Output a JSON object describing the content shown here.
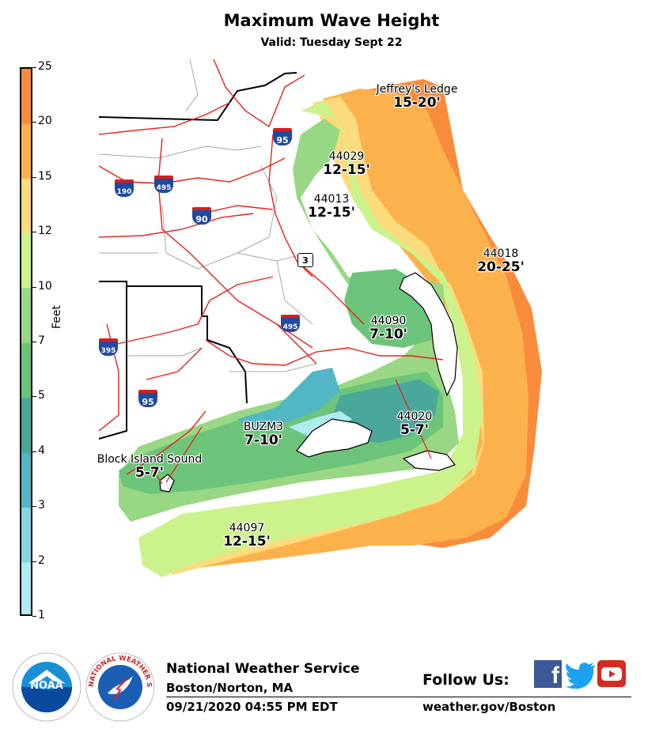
{
  "header": {
    "title": "Maximum Wave Height",
    "subtitle": "Valid: Tuesday Sept 22"
  },
  "legend": {
    "unit_label": "Feet",
    "ticks": [
      "1",
      "2",
      "3",
      "4",
      "5",
      "7",
      "10",
      "12",
      "15",
      "20",
      "25"
    ],
    "colors": [
      "#aeecf2",
      "#86d8e0",
      "#52b7c4",
      "#4aa89b",
      "#6cc47a",
      "#98d784",
      "#ccf28c",
      "#fbdb7c",
      "#fbb24c",
      "#f98c3c"
    ]
  },
  "stations": [
    {
      "id": "jeffreys",
      "name": "Jeffrey's Ledge",
      "range": "15-20'"
    },
    {
      "id": "44029",
      "name": "44029",
      "range": "12-15'"
    },
    {
      "id": "44013",
      "name": "44013",
      "range": "12-15'"
    },
    {
      "id": "44018",
      "name": "44018",
      "range": "20-25'"
    },
    {
      "id": "44090",
      "name": "44090",
      "range": "7-10'"
    },
    {
      "id": "44020",
      "name": "44020",
      "range": "5-7'"
    },
    {
      "id": "buzm3",
      "name": "BUZM3",
      "range": "7-10'"
    },
    {
      "id": "block",
      "name": "Block Island Sound",
      "range": "5-7'"
    },
    {
      "id": "44097",
      "name": "44097",
      "range": "12-15'"
    }
  ],
  "highway_shields": [
    {
      "id": "i95n",
      "number": "95",
      "color": "#1f4aa0"
    },
    {
      "id": "i190",
      "number": "190",
      "color": "#1f4aa0"
    },
    {
      "id": "i495n",
      "number": "495",
      "color": "#1f4aa0"
    },
    {
      "id": "i90",
      "number": "90",
      "color": "#1f4aa0"
    },
    {
      "id": "r3",
      "number": "3",
      "color": "#ffffff"
    },
    {
      "id": "i495s",
      "number": "495",
      "color": "#1f4aa0"
    },
    {
      "id": "i395",
      "number": "395",
      "color": "#1f4aa0"
    },
    {
      "id": "i95s",
      "number": "95",
      "color": "#1f4aa0"
    }
  ],
  "footer": {
    "agency": "National Weather Service",
    "office": "Boston/Norton, MA",
    "timestamp": "09/21/2020 04:55 PM EDT",
    "follow_label": "Follow Us:",
    "website": "weather.gov/Boston",
    "social_icons": [
      "facebook-icon",
      "twitter-icon",
      "youtube-icon"
    ],
    "noaa_logo_text": "NOAA",
    "nws_logo_text": "NATIONAL WEATHER SERVICE"
  }
}
